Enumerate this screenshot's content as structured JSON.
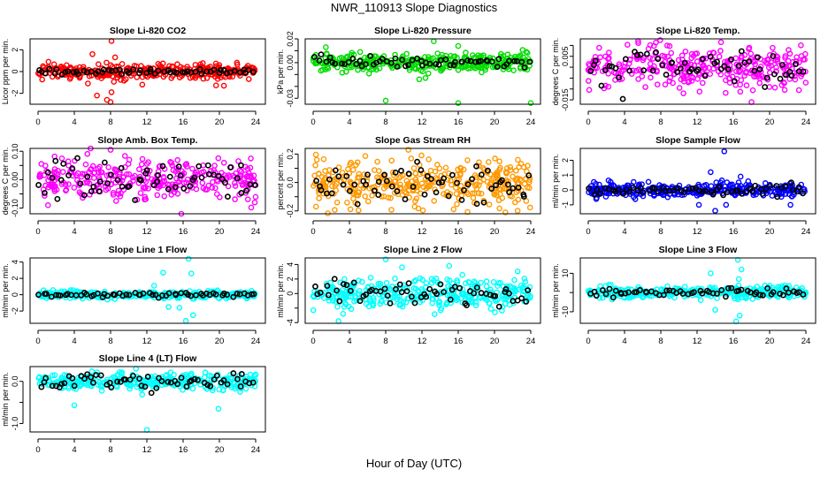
{
  "title": "NWR_110913  Slope Diagnostics",
  "xlabel": "Hour of Day (UTC)",
  "chart_data": [
    {
      "type": "scatter",
      "title": "Slope Li-820 CO2",
      "ylabel": "Licor ppm per min.",
      "color": "#ff0000",
      "xlim": [
        0,
        24
      ],
      "xticks": [
        0,
        4,
        8,
        12,
        16,
        20,
        24
      ],
      "ylim": [
        -3,
        3
      ],
      "yticks": [
        -2,
        0,
        2
      ],
      "yticklabels": [
        "-2",
        "0",
        "2"
      ],
      "n": 320,
      "sd": 0.35,
      "black_n": 60,
      "black_sd": 0.12,
      "outliers": [
        [
          8.1,
          2.8
        ],
        [
          6.0,
          1.6
        ],
        [
          7.6,
          -2.6
        ],
        [
          8.0,
          -2.8
        ],
        [
          6.5,
          -2.2
        ],
        [
          8.1,
          -1.9
        ],
        [
          11.5,
          -1.2
        ],
        [
          20.5,
          -1.3
        ],
        [
          5.5,
          -1.1
        ],
        [
          8.5,
          1.3
        ]
      ]
    },
    {
      "type": "scatter",
      "title": "Slope Li-820 Pressure",
      "ylabel": "kPa per min.",
      "color": "#00dd00",
      "xlim": [
        0,
        24
      ],
      "xticks": [
        0,
        4,
        8,
        12,
        16,
        20,
        24
      ],
      "ylim": [
        -0.035,
        0.02
      ],
      "yticks": [
        -0.03,
        -0.02,
        -0.01,
        0,
        0.01,
        0.02
      ],
      "yticklabels": [
        "-0.03",
        "",
        "",
        "0.00",
        "",
        "0.02"
      ],
      "n": 320,
      "sd": 0.004,
      "black_n": 60,
      "black_sd": 0.002,
      "outliers": [
        [
          8.0,
          -0.032
        ],
        [
          16.0,
          -0.034
        ],
        [
          24.0,
          -0.034
        ],
        [
          13.3,
          0.018
        ],
        [
          1.4,
          0.013
        ],
        [
          16.0,
          0.014
        ],
        [
          11.7,
          -0.014
        ]
      ]
    },
    {
      "type": "scatter",
      "title": "Slope Li-820 Temp.",
      "ylabel": "degrees C per min.",
      "color": "#ff00ff",
      "xlim": [
        0,
        24
      ],
      "xticks": [
        0,
        4,
        8,
        12,
        16,
        20,
        24
      ],
      "ylim": [
        -0.017,
        0.013
      ],
      "yticks": [
        -0.015,
        -0.01,
        -0.005,
        0,
        0.005,
        0.01
      ],
      "yticklabels": [
        "-0.015",
        "",
        "",
        "",
        "0.005",
        ""
      ],
      "n": 320,
      "sd": 0.005,
      "black_n": 60,
      "black_sd": 0.004,
      "outliers": [
        [
          5.5,
          0.012
        ],
        [
          18.0,
          -0.016
        ],
        [
          10.5,
          -0.012
        ]
      ]
    },
    {
      "type": "scatter",
      "title": "Slope Amb. Box Temp.",
      "ylabel": "degrees C per min.",
      "color": "#ff00ff",
      "xlim": [
        0,
        24
      ],
      "xticks": [
        0,
        4,
        8,
        12,
        16,
        20,
        24
      ],
      "ylim": [
        -0.12,
        0.11
      ],
      "yticks": [
        -0.1,
        -0.05,
        0,
        0.05,
        0.1
      ],
      "yticklabels": [
        "-0.10",
        "",
        "0.00",
        "",
        "0.10"
      ],
      "n": 320,
      "sd": 0.035,
      "black_n": 60,
      "black_sd": 0.03,
      "outliers": [
        [
          8.0,
          0.105
        ],
        [
          15.8,
          -0.12
        ],
        [
          1.1,
          -0.09
        ],
        [
          23.9,
          -0.08
        ]
      ]
    },
    {
      "type": "scatter",
      "title": "Slope Gas Stream RH",
      "ylabel": "percent per min.",
      "color": "#ff9900",
      "xlim": [
        0,
        24
      ],
      "xticks": [
        0,
        4,
        8,
        12,
        16,
        20,
        24
      ],
      "ylim": [
        -0.22,
        0.24
      ],
      "yticks": [
        -0.2,
        -0.1,
        0,
        0.1,
        0.2
      ],
      "yticklabels": [
        "-0.2",
        "",
        "0.0",
        "",
        "0.2"
      ],
      "n": 340,
      "sd": 0.08,
      "black_n": 60,
      "black_sd": 0.06,
      "outliers": [
        [
          10.5,
          0.23
        ],
        [
          21.2,
          -0.21
        ],
        [
          0.4,
          0.16
        ],
        [
          11.2,
          -0.17
        ]
      ]
    },
    {
      "type": "scatter",
      "title": "Slope Sample Flow",
      "ylabel": "ml/min per min.",
      "color": "#0000ff",
      "xlim": [
        0,
        24
      ],
      "xticks": [
        0,
        4,
        8,
        12,
        16,
        20,
        24
      ],
      "ylim": [
        -1.6,
        2.8
      ],
      "yticks": [
        -1,
        0,
        1,
        2
      ],
      "yticklabels": [
        "-1",
        "0",
        "1",
        "2"
      ],
      "n": 320,
      "sd": 0.22,
      "black_n": 60,
      "black_sd": 0.2,
      "outliers": [
        [
          15.0,
          2.6
        ],
        [
          14.0,
          -1.4
        ],
        [
          13.5,
          1.2
        ],
        [
          12.2,
          -1.0
        ],
        [
          22.3,
          -1.0
        ],
        [
          16.8,
          0.9
        ],
        [
          15.2,
          -1.0
        ]
      ]
    },
    {
      "type": "scatter",
      "title": "Slope Line 1 Flow",
      "ylabel": "ml/min per min.",
      "color": "#00ffff",
      "xlim": [
        0,
        24
      ],
      "xticks": [
        0,
        4,
        8,
        12,
        16,
        20,
        24
      ],
      "ylim": [
        -3.5,
        4.5
      ],
      "yticks": [
        -2,
        0,
        2,
        4
      ],
      "yticklabels": [
        "-2",
        "0",
        "2",
        "4"
      ],
      "n": 320,
      "sd": 0.22,
      "black_n": 60,
      "black_sd": 0.15,
      "outliers": [
        [
          16.6,
          4.4
        ],
        [
          16.3,
          -3.2
        ],
        [
          16.9,
          2.6
        ],
        [
          17.1,
          -2.5
        ],
        [
          13.8,
          2.7
        ],
        [
          14.4,
          -1.5
        ],
        [
          15.6,
          -1.6
        ],
        [
          12.8,
          1.1
        ]
      ]
    },
    {
      "type": "scatter",
      "title": "Slope Line 2 Flow",
      "ylabel": "ml/min per min.",
      "color": "#00ffff",
      "xlim": [
        0,
        24
      ],
      "xticks": [
        0,
        4,
        8,
        12,
        16,
        20,
        24
      ],
      "ylim": [
        -4.1,
        4.9
      ],
      "yticks": [
        -4,
        -2,
        0,
        2,
        4
      ],
      "yticklabels": [
        "-4",
        "",
        "0",
        "2",
        "4"
      ],
      "n": 340,
      "sd": 1.0,
      "black_n": 60,
      "black_sd": 1.0,
      "outliers": [
        [
          8.0,
          4.7
        ],
        [
          2.8,
          -3.8
        ],
        [
          3.3,
          -2.8
        ],
        [
          9.8,
          3.6
        ],
        [
          15.0,
          3.8
        ]
      ]
    },
    {
      "type": "scatter",
      "title": "Slope Line 3 Flow",
      "ylabel": "ml/min per min.",
      "color": "#00ffff",
      "xlim": [
        0,
        24
      ],
      "xticks": [
        0,
        4,
        8,
        12,
        16,
        20,
        24
      ],
      "ylim": [
        -16,
        18
      ],
      "yticks": [
        -10,
        0,
        10
      ],
      "yticklabels": [
        "-10",
        "",
        "10"
      ],
      "n": 320,
      "sd": 1.4,
      "black_n": 60,
      "black_sd": 1.0,
      "outliers": [
        [
          16.5,
          17
        ],
        [
          16.3,
          -15
        ],
        [
          16.7,
          -12
        ],
        [
          16.9,
          12
        ],
        [
          14.0,
          -9
        ],
        [
          13.5,
          10
        ],
        [
          16.6,
          7
        ]
      ]
    },
    {
      "type": "scatter",
      "title": "Slope Line 4 (LT) Flow",
      "ylabel": "ml/min per min.",
      "color": "#00ffff",
      "xlim": [
        0,
        24
      ],
      "xticks": [
        0,
        4,
        8,
        12,
        16,
        20,
        24
      ],
      "ylim": [
        -1.2,
        0.35
      ],
      "yticks": [
        -1.0,
        -0.5,
        0.0
      ],
      "yticklabels": [
        "-1.0",
        "",
        "0.0"
      ],
      "n": 320,
      "sd": 0.09,
      "black_n": 60,
      "black_sd": 0.1,
      "outliers": [
        [
          12.0,
          -1.15
        ],
        [
          4.0,
          -0.57
        ],
        [
          19.9,
          -0.65
        ],
        [
          10.8,
          0.3
        ]
      ]
    }
  ]
}
